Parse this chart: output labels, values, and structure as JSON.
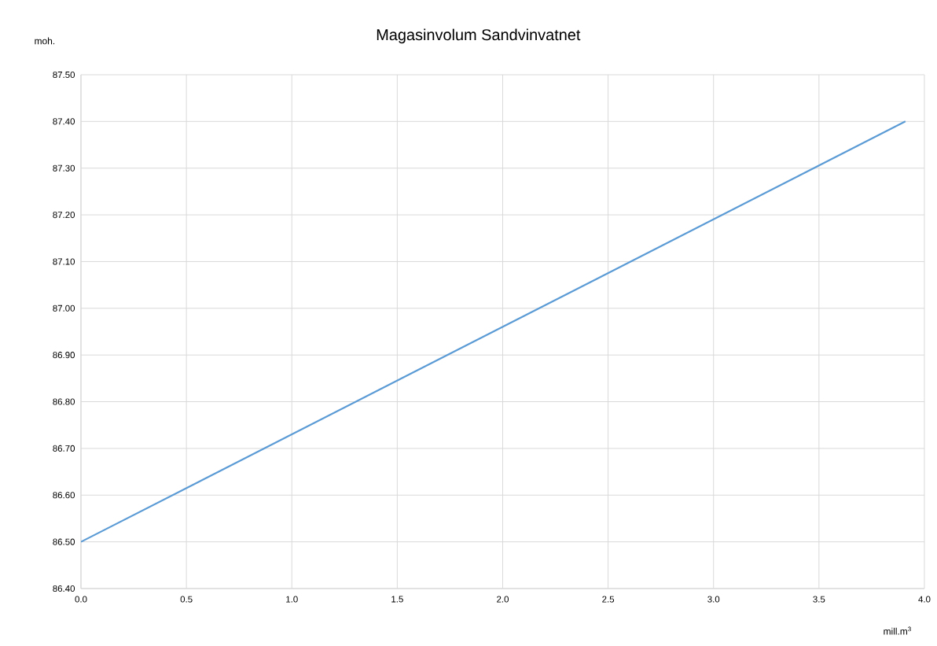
{
  "chart_data": {
    "type": "line",
    "title": "Magasinvolum Sandvinvatnet",
    "xlabel": "mill.m$^{3}$",
    "ylabel": "moh.",
    "x": [
      0.0,
      3.91
    ],
    "series": [
      {
        "color": "#5b9bd5",
        "values": [
          86.5,
          87.4
        ]
      }
    ],
    "xlim": [
      0.0,
      4.0
    ],
    "ylim": [
      86.4,
      87.5
    ],
    "xticks": [
      {
        "value": 0.0,
        "label": "0.0"
      },
      {
        "value": 0.5,
        "label": "0.5"
      },
      {
        "value": 1.0,
        "label": "1.0"
      },
      {
        "value": 1.5,
        "label": "1.5"
      },
      {
        "value": 2.0,
        "label": "2.0"
      },
      {
        "value": 2.5,
        "label": "2.5"
      },
      {
        "value": 3.0,
        "label": "3.0"
      },
      {
        "value": 3.5,
        "label": "3.5"
      },
      {
        "value": 4.0,
        "label": "4.0"
      }
    ],
    "yticks": [
      {
        "value": 86.4,
        "label": "86.40"
      },
      {
        "value": 86.5,
        "label": "86.50"
      },
      {
        "value": 86.6,
        "label": "86.60"
      },
      {
        "value": 86.7,
        "label": "86.70"
      },
      {
        "value": 86.8,
        "label": "86.80"
      },
      {
        "value": 86.9,
        "label": "86.90"
      },
      {
        "value": 87.0,
        "label": "87.00"
      },
      {
        "value": 87.1,
        "label": "87.10"
      },
      {
        "value": 87.2,
        "label": "87.20"
      },
      {
        "value": 87.3,
        "label": "87.30"
      },
      {
        "value": 87.4,
        "label": "87.40"
      },
      {
        "value": 87.5,
        "label": "87.50"
      }
    ],
    "grid": true
  }
}
